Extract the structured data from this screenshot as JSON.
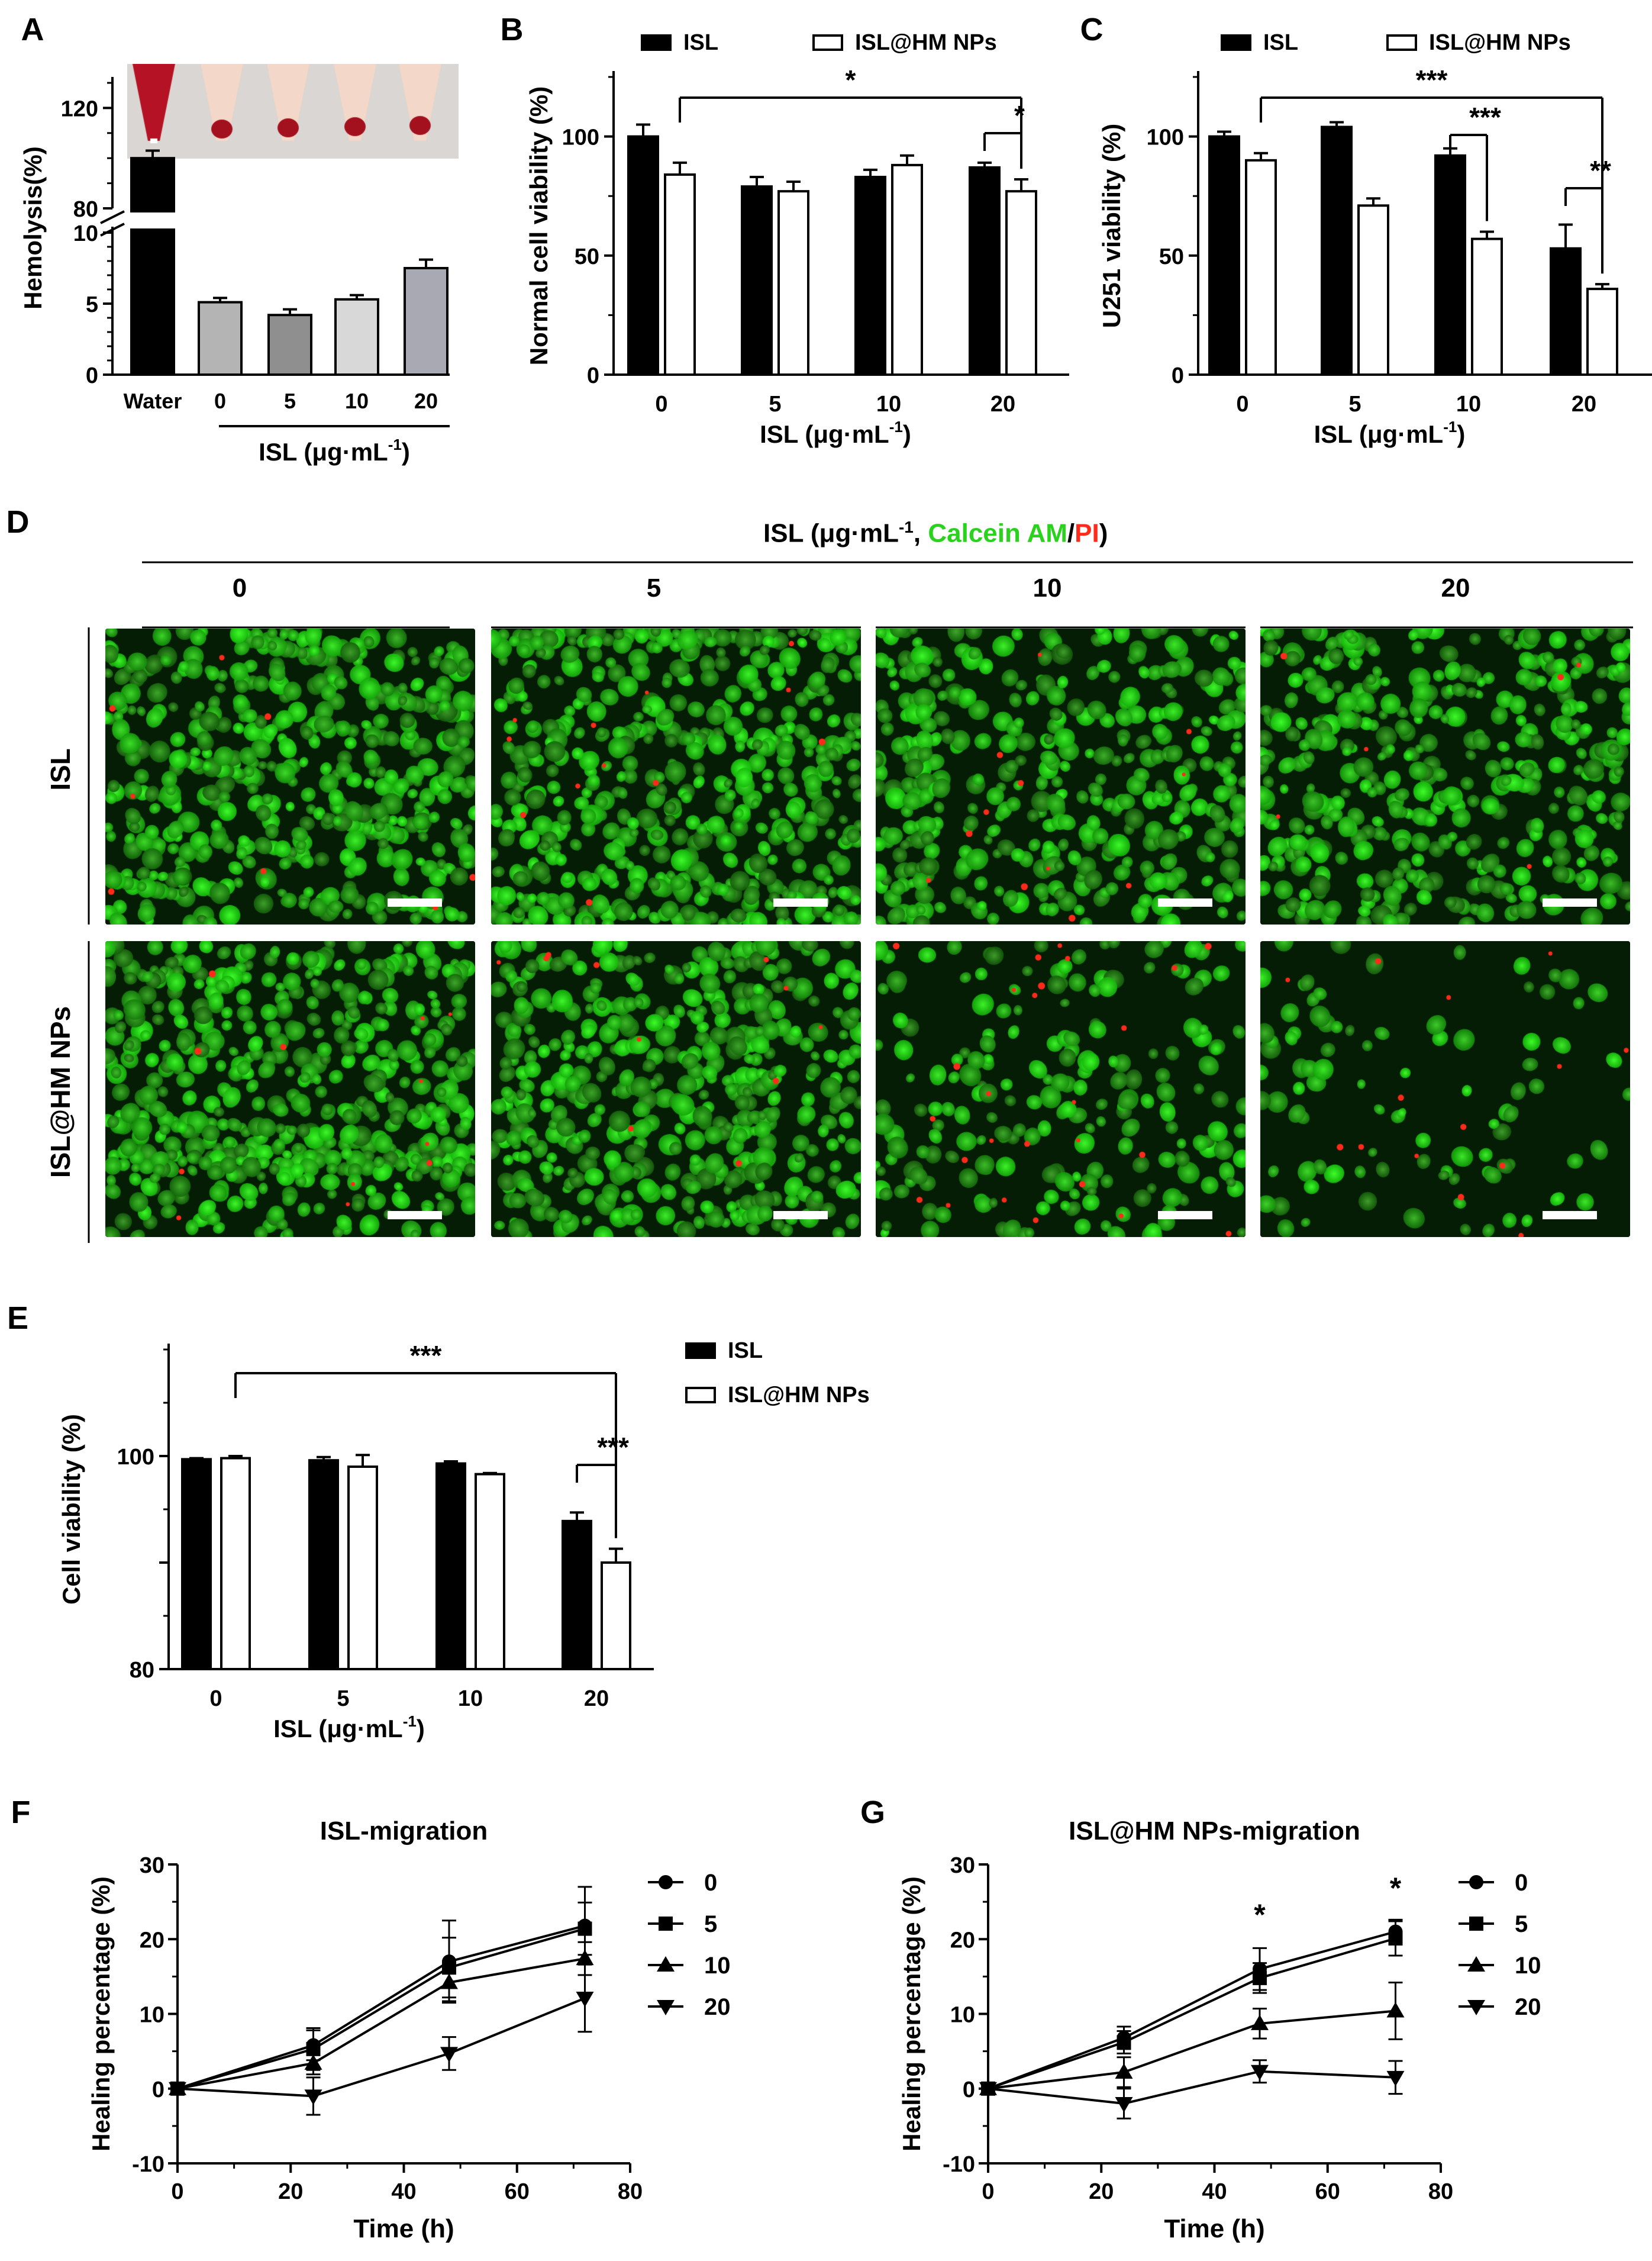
{
  "panels": {
    "A": {
      "letter": "A"
    },
    "B": {
      "letter": "B"
    },
    "C": {
      "letter": "C"
    },
    "D": {
      "letter": "D"
    },
    "E": {
      "letter": "E"
    },
    "F": {
      "letter": "F"
    },
    "G": {
      "letter": "G"
    }
  },
  "colors": {
    "isl": "#000000",
    "isl_hm": "#ffffff",
    "live": "#29d21c",
    "dead": "#ff2a1a",
    "blood": "#a3111f"
  },
  "chart_data": [
    {
      "panel": "A",
      "type": "bar",
      "categories": [
        "Water",
        "0",
        "5",
        "10",
        "20"
      ],
      "values": [
        100,
        5.1,
        4.2,
        5.3,
        7.5
      ],
      "errors": [
        3,
        0.3,
        0.4,
        0.3,
        0.6
      ],
      "bar_colors": [
        "#000000",
        "#b4b4b4",
        "#8f8f8f",
        "#d8d8d8",
        "#a9a9b3"
      ],
      "ylabel": "Hemolysis(%)",
      "xlabel": "ISL (μg·mL⁻¹)",
      "y_axis_break": {
        "lower_ylim": [
          0,
          10
        ],
        "upper_ylim": [
          80,
          130
        ]
      },
      "y_ticks_lower": [
        0,
        5,
        10
      ],
      "y_ticks_upper": [
        80,
        120
      ],
      "inset_image": "hemolysis tubes (Water, 0, 5, 10, 20)"
    },
    {
      "panel": "B",
      "type": "bar",
      "categories": [
        "0",
        "5",
        "10",
        "20"
      ],
      "series": [
        {
          "name": "ISL",
          "values": [
            100,
            79,
            83,
            87
          ],
          "errors": [
            5,
            4,
            3,
            2
          ]
        },
        {
          "name": "ISL@HM NPs",
          "values": [
            84,
            77,
            88,
            77
          ],
          "errors": [
            5,
            4,
            4,
            5
          ]
        }
      ],
      "ylabel": "Normal cell viability (%)",
      "xlabel": "ISL (μg·mL⁻¹)",
      "ylim": [
        0,
        125
      ],
      "yticks": [
        0,
        50,
        100
      ],
      "significance": [
        {
          "from": [
            "0",
            "ISL@HM NPs"
          ],
          "to": [
            "20",
            "ISL@HM NPs"
          ],
          "label": "*"
        },
        {
          "from": [
            "20",
            "ISL"
          ],
          "to": [
            "20",
            "ISL@HM NPs"
          ],
          "label": "*"
        }
      ]
    },
    {
      "panel": "C",
      "type": "bar",
      "categories": [
        "0",
        "5",
        "10",
        "20"
      ],
      "series": [
        {
          "name": "ISL",
          "values": [
            100,
            104,
            92,
            53
          ],
          "errors": [
            2,
            2,
            3,
            10
          ]
        },
        {
          "name": "ISL@HM NPs",
          "values": [
            90,
            71,
            57,
            36
          ],
          "errors": [
            3,
            3,
            3,
            2
          ]
        }
      ],
      "ylabel": "U251 viability (%)",
      "xlabel": "ISL (μg·mL⁻¹)",
      "ylim": [
        0,
        125
      ],
      "yticks": [
        0,
        50,
        100
      ],
      "significance": [
        {
          "from": [
            "0",
            "ISL@HM NPs"
          ],
          "to": [
            "20",
            "ISL@HM NPs"
          ],
          "label": "***"
        },
        {
          "from": [
            "10",
            "ISL"
          ],
          "to": [
            "10",
            "ISL@HM NPs"
          ],
          "label": "***"
        },
        {
          "from": [
            "20",
            "ISL"
          ],
          "to": [
            "20",
            "ISL@HM NPs"
          ],
          "label": "**"
        }
      ]
    },
    {
      "panel": "E",
      "type": "bar",
      "categories": [
        "0",
        "5",
        "10",
        "20"
      ],
      "series": [
        {
          "name": "ISL",
          "values": [
            99.7,
            99.6,
            99.3,
            93.9
          ],
          "errors": [
            0.1,
            0.3,
            0.2,
            0.8
          ]
        },
        {
          "name": "ISL@HM NPs",
          "values": [
            99.8,
            99.0,
            98.3,
            90.0
          ],
          "errors": [
            0.2,
            1.1,
            0.1,
            1.3
          ]
        }
      ],
      "ylabel": "Cell viability (%)",
      "xlabel": "ISL (μg·mL⁻¹)",
      "ylim": [
        80,
        110
      ],
      "yticks": [
        80,
        90,
        100
      ],
      "ytick_labels": [
        "80",
        "",
        "100"
      ],
      "significance": [
        {
          "from": [
            "0",
            "ISL@HM NPs"
          ],
          "to": [
            "20",
            "ISL@HM NPs"
          ],
          "label": "***"
        },
        {
          "from": [
            "20",
            "ISL"
          ],
          "to": [
            "20",
            "ISL@HM NPs"
          ],
          "label": "***"
        }
      ]
    },
    {
      "panel": "F",
      "type": "line",
      "title": "ISL-migration",
      "x": [
        0,
        24,
        48,
        72
      ],
      "series": [
        {
          "name": "0",
          "marker": "circle",
          "values": [
            0,
            5.8,
            17.0,
            21.8
          ],
          "errors": [
            0,
            2.0,
            5.5,
            5.2
          ]
        },
        {
          "name": "5",
          "marker": "square",
          "values": [
            0,
            5.3,
            16.2,
            21.4
          ],
          "errors": [
            0,
            2.8,
            4.0,
            3.5
          ]
        },
        {
          "name": "10",
          "marker": "triangle",
          "values": [
            0,
            3.4,
            14.2,
            17.4
          ],
          "errors": [
            0,
            1.5,
            2.5,
            2.2
          ]
        },
        {
          "name": "20",
          "marker": "triangle-down",
          "values": [
            0,
            -1.0,
            4.7,
            12.1
          ],
          "errors": [
            0,
            2.5,
            2.2,
            4.5
          ]
        }
      ],
      "xlabel": "Time (h)",
      "ylabel": "Healing percentage (%)",
      "xlim": [
        0,
        80
      ],
      "ylim": [
        -10,
        30
      ],
      "xticks": [
        0,
        20,
        40,
        60,
        80
      ],
      "yticks": [
        -10,
        0,
        10,
        20,
        30
      ]
    },
    {
      "panel": "G",
      "type": "line",
      "title": "ISL@HM NPs-migration",
      "x": [
        0,
        24,
        48,
        72
      ],
      "series": [
        {
          "name": "0",
          "marker": "circle",
          "values": [
            0,
            6.8,
            16.0,
            21.0
          ],
          "errors": [
            0,
            1.5,
            2.8,
            1.6
          ]
        },
        {
          "name": "5",
          "marker": "square",
          "values": [
            0,
            6.2,
            14.8,
            20.1
          ],
          "errors": [
            0,
            1.5,
            2.0,
            2.3
          ]
        },
        {
          "name": "10",
          "marker": "triangle",
          "values": [
            0,
            2.2,
            8.7,
            10.4
          ],
          "errors": [
            0,
            2.0,
            2.0,
            3.8
          ]
        },
        {
          "name": "20",
          "marker": "triangle-down",
          "values": [
            0,
            -2.0,
            2.3,
            1.5
          ],
          "errors": [
            0,
            2.0,
            1.5,
            2.2
          ]
        }
      ],
      "xlabel": "Time (h)",
      "ylabel": "Healing percentage (%)",
      "xlim": [
        0,
        80
      ],
      "ylim": [
        -10,
        30
      ],
      "xticks": [
        0,
        20,
        40,
        60,
        80
      ],
      "yticks": [
        -10,
        0,
        10,
        20,
        30
      ],
      "annotations": [
        {
          "x": 48,
          "label": "*"
        },
        {
          "x": 72,
          "label": "*"
        }
      ]
    }
  ],
  "micrographs": {
    "header_prefix": "ISL (μg·mL",
    "header_sup": "-1",
    "header_comma": ", ",
    "header_calcein": "Calcein AM",
    "header_slash": "/",
    "header_pi": "PI",
    "header_close": ")",
    "columns": [
      "0",
      "5",
      "10",
      "20"
    ],
    "rows": [
      "ISL",
      "ISL@HM NPs"
    ],
    "stain_live": "Calcein AM",
    "stain_dead": "PI",
    "dead_cell_fraction": [
      [
        0.01,
        0.015,
        0.02,
        0.01
      ],
      [
        0.015,
        0.015,
        0.06,
        0.05
      ]
    ],
    "cell_density": [
      [
        1.0,
        1.0,
        0.75,
        0.8
      ],
      [
        1.0,
        0.9,
        0.55,
        0.35
      ]
    ]
  }
}
